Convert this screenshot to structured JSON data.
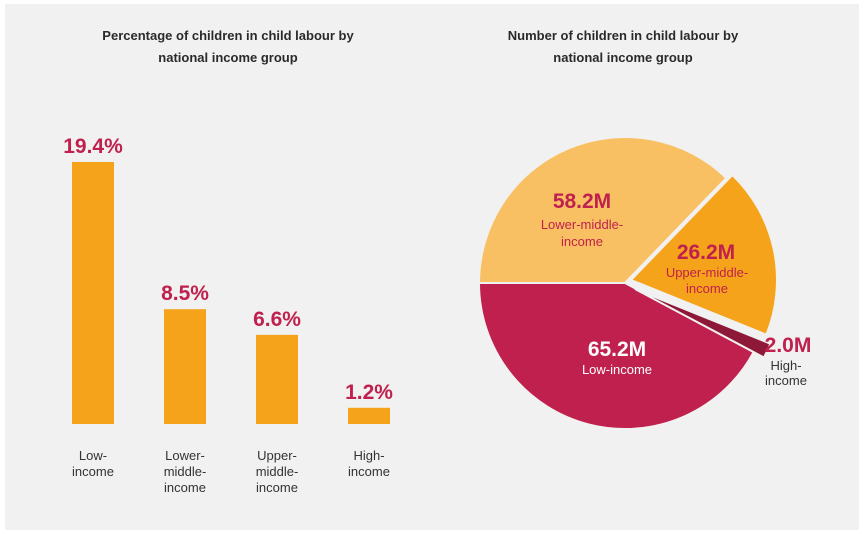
{
  "bar_chart": {
    "title": "Percentage of children in child labour by\nnational income group"
  },
  "pie_chart": {
    "title": "Number of children in child labour by\nnational income group"
  },
  "colors": {
    "panel_background": "#f2f1f1",
    "bar": "#f5a31a",
    "value_text": "#c0204d",
    "lower_middle": "#f9c063",
    "upper_middle": "#f5a31a",
    "low": "#c0204d",
    "high": "#8e1838"
  },
  "chart_data": [
    {
      "type": "bar",
      "title": "Percentage of children in child labour by national income group",
      "categories": [
        "Low-\nincome",
        "Lower-\nmiddle-\nincome",
        "Upper-\nmiddle-\nincome",
        "High-\nincome"
      ],
      "values": [
        19.4,
        8.5,
        6.6,
        1.2
      ],
      "value_labels": [
        "19.4%",
        "8.5%",
        "6.6%",
        "1.2%"
      ],
      "unit": "%",
      "ylim": [
        0,
        20
      ],
      "grid": false,
      "axes_visible": false
    },
    {
      "type": "pie",
      "title": "Number of children in child labour by national income group",
      "slices": [
        {
          "label": "Low-income",
          "value": 65.2,
          "value_label": "65.2M",
          "color": "#c0204d"
        },
        {
          "label": "Lower-middle-\nincome",
          "value": 58.2,
          "value_label": "58.2M",
          "color": "#f9c063"
        },
        {
          "label": "Upper-middle-\nincome",
          "value": 26.2,
          "value_label": "26.2M",
          "color": "#f5a31a",
          "exploded": true
        },
        {
          "label": "High-\nincome",
          "value": 2.0,
          "value_label": "2.0M",
          "color": "#8e1838",
          "exploded": true
        }
      ],
      "unit": "million children"
    }
  ]
}
